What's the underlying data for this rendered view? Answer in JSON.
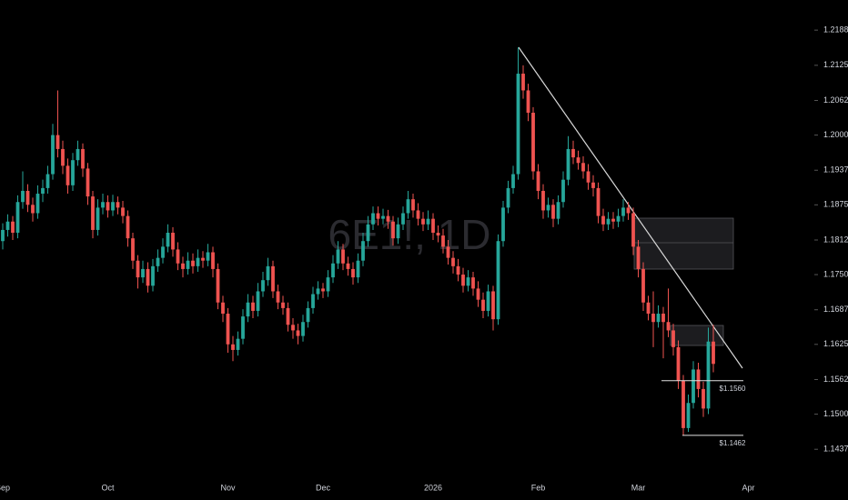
{
  "chart_data": {
    "type": "candlestick",
    "watermark": "6E1!, 1D",
    "up_color": "#26a69a",
    "down_color": "#ef5350",
    "ylim": [
      1.1395,
      1.2242
    ],
    "yticks": [
      1.2188,
      1.2125,
      1.2062,
      {
        "value": 1.2,
        "label": "1.2000"
      },
      1.1937,
      1.1875,
      1.1812,
      {
        "value": 1.175,
        "label": "1.1750"
      },
      1.1687,
      1.1625,
      1.1562,
      {
        "value": 1.15,
        "label": "1.1500"
      },
      1.1437
    ],
    "levels": [
      {
        "value": 1.156,
        "label": "$1.1560"
      },
      {
        "value": 1.1462,
        "label": "$1.1462"
      }
    ],
    "categories": [
      "Sep",
      null,
      null,
      null,
      null,
      null,
      null,
      null,
      null,
      null,
      null,
      null,
      null,
      null,
      null,
      null,
      null,
      null,
      null,
      null,
      null,
      "Oct",
      null,
      null,
      null,
      null,
      null,
      null,
      null,
      null,
      null,
      null,
      null,
      null,
      null,
      null,
      null,
      null,
      null,
      null,
      null,
      null,
      null,
      null,
      null,
      "Nov",
      null,
      null,
      null,
      null,
      null,
      null,
      null,
      null,
      null,
      null,
      null,
      null,
      null,
      null,
      null,
      null,
      null,
      null,
      "Dec",
      null,
      null,
      null,
      null,
      null,
      null,
      null,
      null,
      null,
      null,
      null,
      null,
      null,
      null,
      null,
      null,
      null,
      null,
      null,
      null,
      null,
      "2026",
      null,
      null,
      null,
      null,
      null,
      null,
      null,
      null,
      null,
      null,
      null,
      null,
      null,
      null,
      null,
      null,
      null,
      null,
      null,
      null,
      "Feb",
      null,
      null,
      null,
      null,
      null,
      null,
      null,
      null,
      null,
      null,
      null,
      null,
      null,
      null,
      null,
      null,
      null,
      null,
      null,
      "Mar",
      null,
      null,
      null,
      null,
      null,
      null,
      null,
      null,
      null,
      null,
      null,
      null,
      null,
      null,
      null,
      null,
      null,
      null,
      null,
      null,
      null,
      "Apr",
      null
    ],
    "open": [
      1.181,
      1.183,
      1.1845,
      1.1825,
      1.188,
      1.19,
      1.1875,
      1.186,
      1.1895,
      1.1905,
      1.193,
      1.2,
      1.1975,
      1.1945,
      1.191,
      1.1955,
      1.1975,
      1.194,
      1.189,
      1.183,
      1.187,
      1.188,
      1.1865,
      1.188,
      1.187,
      1.1855,
      1.1815,
      1.1775,
      1.1745,
      1.176,
      1.173,
      1.1765,
      1.178,
      1.18,
      1.1825,
      1.1795,
      1.177,
      1.176,
      1.1775,
      1.1765,
      1.178,
      1.1775,
      1.179,
      1.176,
      1.17,
      1.168,
      1.1625,
      1.1615,
      1.1635,
      1.1675,
      1.17,
      1.1685,
      1.172,
      1.174,
      1.1765,
      1.172,
      1.17,
      1.169,
      1.166,
      1.165,
      1.164,
      1.1665,
      1.169,
      1.1715,
      1.1725,
      1.172,
      1.1745,
      1.177,
      1.1795,
      1.177,
      1.176,
      1.1745,
      1.1775,
      1.181,
      1.184,
      1.186,
      1.185,
      1.1855,
      1.1845,
      1.1815,
      1.184,
      1.186,
      1.1885,
      1.1865,
      1.185,
      1.184,
      1.185,
      1.1825,
      1.182,
      1.18,
      1.178,
      1.1765,
      1.175,
      1.173,
      1.1745,
      1.1725,
      1.1705,
      1.1685,
      1.172,
      1.167,
      1.181,
      1.187,
      1.1905,
      1.193,
      1.211,
      1.208,
      1.204,
      1.1935,
      1.19,
      1.1865,
      1.1875,
      1.185,
      1.188,
      1.192,
      1.1975,
      1.196,
      1.195,
      1.1935,
      1.1915,
      1.1905,
      1.1855,
      1.184,
      1.185,
      1.1845,
      1.1855,
      1.187,
      1.186,
      1.18,
      1.176,
      1.17,
      1.168,
      1.1665,
      1.168,
      1.1665,
      1.165,
      1.162,
      1.156,
      1.1475,
      1.152,
      1.158,
      1.1545,
      1.151,
      1.163,
      null,
      null,
      null,
      null,
      null,
      null,
      null,
      null
    ],
    "high": [
      1.1842,
      1.1858,
      1.1855,
      1.1892,
      1.1935,
      1.1912,
      1.1888,
      1.191,
      1.192,
      1.1945,
      1.202,
      1.208,
      1.199,
      1.1958,
      1.1968,
      1.199,
      1.1985,
      1.195,
      1.19,
      1.1885,
      1.1895,
      1.1892,
      1.1893,
      1.189,
      1.1882,
      1.1865,
      1.1825,
      1.1785,
      1.1775,
      1.1772,
      1.1778,
      1.1795,
      1.1815,
      1.184,
      1.1835,
      1.1808,
      1.1782,
      1.179,
      1.1788,
      1.1795,
      1.1792,
      1.1805,
      1.18,
      1.177,
      1.1712,
      1.169,
      1.164,
      1.1648,
      1.1688,
      1.1715,
      1.1712,
      1.1735,
      1.1755,
      1.178,
      1.1775,
      1.1732,
      1.1712,
      1.17,
      1.1672,
      1.1662,
      1.1678,
      1.1702,
      1.1728,
      1.1738,
      1.1735,
      1.1758,
      1.1785,
      1.181,
      1.1805,
      1.1782,
      1.1772,
      1.1788,
      1.1825,
      1.1855,
      1.1872,
      1.1872,
      1.1868,
      1.1866,
      1.1855,
      1.1852,
      1.1872,
      1.19,
      1.1895,
      1.1878,
      1.1862,
      1.1865,
      1.186,
      1.1838,
      1.1832,
      1.1812,
      1.1792,
      1.1778,
      1.1762,
      1.1758,
      1.1755,
      1.1738,
      1.1718,
      1.1732,
      1.173,
      1.1822,
      1.1882,
      1.1918,
      1.1945,
      1.2157,
      1.2125,
      1.2092,
      1.205,
      1.1948,
      1.1912,
      1.1888,
      1.1885,
      1.1892,
      1.1935,
      1.1998,
      1.199,
      1.1972,
      1.1962,
      1.1948,
      1.1928,
      1.1915,
      1.1868,
      1.1862,
      1.1862,
      1.1868,
      1.1885,
      1.188,
      1.187,
      1.1812,
      1.1772,
      1.1712,
      1.172,
      1.1695,
      1.1692,
      1.1725,
      1.1662,
      1.1632,
      1.157,
      1.1535,
      1.1595,
      1.1592,
      1.1558,
      1.1655,
      1.166,
      null,
      null,
      null,
      null,
      null,
      null,
      null,
      null
    ],
    "low": [
      1.1795,
      1.1818,
      1.1812,
      1.1815,
      1.1868,
      1.1862,
      1.1845,
      1.185,
      1.188,
      1.1895,
      1.192,
      1.196,
      1.193,
      1.1895,
      1.19,
      1.1945,
      1.1925,
      1.1875,
      1.1815,
      1.182,
      1.1858,
      1.1852,
      1.1855,
      1.1858,
      1.1842,
      1.18,
      1.176,
      1.1725,
      1.1735,
      1.1718,
      1.172,
      1.1755,
      1.177,
      1.179,
      1.1782,
      1.1758,
      1.1745,
      1.175,
      1.1752,
      1.1755,
      1.1762,
      1.1765,
      1.1745,
      1.1688,
      1.1665,
      1.161,
      1.1595,
      1.1605,
      1.1625,
      1.1665,
      1.1672,
      1.1675,
      1.171,
      1.173,
      1.1708,
      1.1688,
      1.1678,
      1.1648,
      1.1635,
      1.1625,
      1.163,
      1.1655,
      1.168,
      1.1705,
      1.1708,
      1.171,
      1.1735,
      1.176,
      1.1758,
      1.1748,
      1.1732,
      1.1735,
      1.1765,
      1.18,
      1.183,
      1.1838,
      1.184,
      1.1832,
      1.1802,
      1.1805,
      1.183,
      1.185,
      1.1852,
      1.1838,
      1.1828,
      1.183,
      1.1812,
      1.1808,
      1.1788,
      1.1768,
      1.1752,
      1.1738,
      1.1718,
      1.172,
      1.1712,
      1.1692,
      1.1672,
      1.1675,
      1.165,
      1.166,
      1.18,
      1.186,
      1.1895,
      1.192,
      1.2065,
      1.2025,
      1.192,
      1.1885,
      1.185,
      1.1852,
      1.1835,
      1.184,
      1.187,
      1.191,
      1.1948,
      1.1938,
      1.1922,
      1.1902,
      1.189,
      1.1842,
      1.1828,
      1.183,
      1.1832,
      1.1835,
      1.1845,
      1.1848,
      1.1785,
      1.1745,
      1.1685,
      1.1668,
      1.162,
      1.1655,
      1.16,
      1.1638,
      1.1605,
      1.1545,
      1.1462,
      1.1468,
      1.151,
      1.153,
      1.1495,
      1.15,
      1.1575,
      null,
      null,
      null,
      null,
      null,
      null,
      null,
      null
    ],
    "close": [
      1.183,
      1.1845,
      1.1825,
      1.188,
      1.19,
      1.1875,
      1.186,
      1.1895,
      1.1905,
      1.193,
      1.2,
      1.1975,
      1.1945,
      1.191,
      1.1955,
      1.1975,
      1.194,
      1.189,
      1.183,
      1.187,
      1.188,
      1.1865,
      1.188,
      1.187,
      1.1855,
      1.1815,
      1.1775,
      1.1745,
      1.176,
      1.173,
      1.1765,
      1.178,
      1.18,
      1.1825,
      1.1795,
      1.177,
      1.176,
      1.1775,
      1.1765,
      1.178,
      1.1775,
      1.179,
      1.176,
      1.17,
      1.168,
      1.1625,
      1.1615,
      1.1635,
      1.1675,
      1.17,
      1.1685,
      1.172,
      1.174,
      1.1765,
      1.172,
      1.17,
      1.169,
      1.166,
      1.165,
      1.164,
      1.1665,
      1.169,
      1.1715,
      1.1725,
      1.172,
      1.1745,
      1.177,
      1.1795,
      1.177,
      1.176,
      1.1745,
      1.1775,
      1.181,
      1.184,
      1.186,
      1.185,
      1.1855,
      1.1845,
      1.1815,
      1.184,
      1.186,
      1.1885,
      1.1865,
      1.185,
      1.184,
      1.185,
      1.1825,
      1.182,
      1.18,
      1.178,
      1.1765,
      1.175,
      1.173,
      1.1745,
      1.1725,
      1.1705,
      1.1685,
      1.172,
      1.167,
      1.181,
      1.187,
      1.1905,
      1.193,
      1.211,
      1.208,
      1.204,
      1.1935,
      1.19,
      1.1865,
      1.1875,
      1.185,
      1.188,
      1.192,
      1.1975,
      1.196,
      1.195,
      1.1935,
      1.1915,
      1.1905,
      1.1855,
      1.184,
      1.185,
      1.1845,
      1.1855,
      1.187,
      1.186,
      1.18,
      1.176,
      1.17,
      1.168,
      1.1665,
      1.168,
      1.1665,
      1.165,
      1.162,
      1.156,
      1.1475,
      1.152,
      1.158,
      1.1545,
      1.151,
      1.163,
      1.159,
      null,
      null,
      null,
      null,
      null,
      null,
      null,
      null
    ]
  }
}
